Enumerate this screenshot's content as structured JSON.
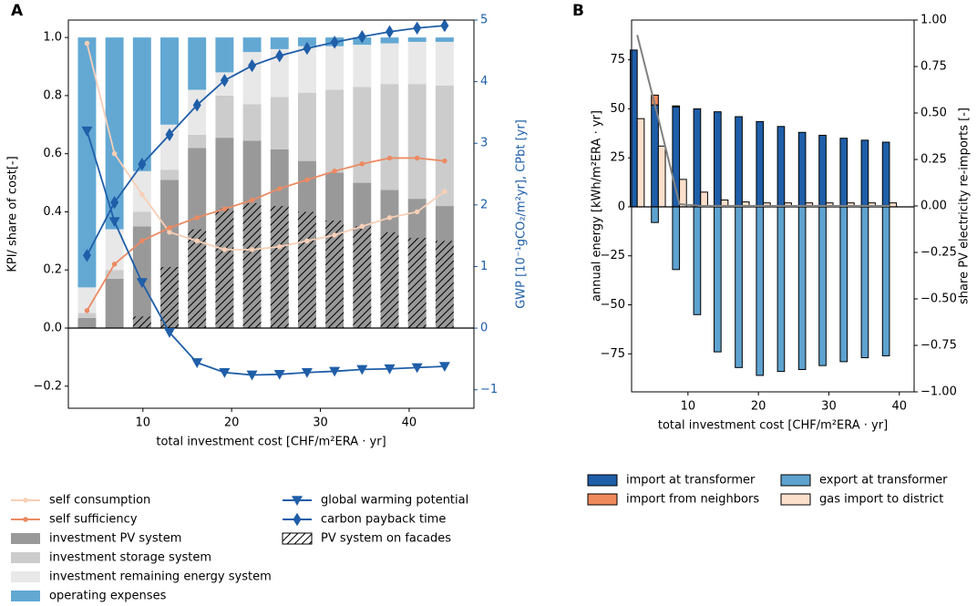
{
  "chart_data": [
    {
      "type": "combo",
      "title": "A",
      "xlabel": "total investment cost  [CHF/m²ERA · yr]",
      "ylabel": "KPI/ share of cost[-]",
      "y2label": "GWP [10⁻¹gCO₂/m²yr], CPbt [yr]",
      "x": [
        3.7,
        6.8,
        9.9,
        13.0,
        16.1,
        19.2,
        22.3,
        25.4,
        28.5,
        31.6,
        34.7,
        37.8,
        40.9,
        44.0
      ],
      "xlim": [
        1.6,
        47.3
      ],
      "xticks": [
        10,
        20,
        30,
        40
      ],
      "ylim": [
        -0.276,
        1.06
      ],
      "yticks": [
        {
          "value": -0.2,
          "label": "−0.2"
        },
        {
          "value": 0,
          "label": "0.0"
        },
        0.2,
        0.4,
        0.6,
        0.8,
        {
          "value": 1,
          "label": "1.0"
        }
      ],
      "y2lim": [
        -1.3,
        5.0
      ],
      "y2ticks": [
        {
          "value": -1,
          "label": "−1"
        },
        0,
        1,
        2,
        3,
        4,
        5
      ],
      "zero_line": true,
      "y2color": "#1f5ea8",
      "series": [
        {
          "name": "self consumption",
          "kind": "line",
          "marker": "circle",
          "color": "#f8cfb6",
          "values": [
            0.98,
            0.6,
            0.46,
            0.33,
            0.3,
            0.27,
            0.27,
            0.28,
            0.3,
            0.32,
            0.35,
            0.38,
            0.4,
            0.47
          ]
        },
        {
          "name": "self sufficiency",
          "kind": "line",
          "marker": "circle",
          "color": "#ec8a63",
          "values": [
            0.06,
            0.22,
            0.3,
            0.345,
            0.38,
            0.41,
            0.44,
            0.48,
            0.51,
            0.54,
            0.565,
            0.585,
            0.585,
            0.575
          ]
        },
        {
          "name": "investment PV system",
          "kind": "bar",
          "color": "#999999",
          "values": [
            0.035,
            0.17,
            0.35,
            0.51,
            0.62,
            0.655,
            0.645,
            0.615,
            0.575,
            0.535,
            0.5,
            0.475,
            0.445,
            0.42
          ]
        },
        {
          "name": "investment storage system",
          "kind": "bar",
          "color": "#cccccc",
          "values": [
            0.017,
            0.03,
            0.05,
            0.035,
            0.045,
            0.145,
            0.125,
            0.18,
            0.235,
            0.285,
            0.33,
            0.365,
            0.395,
            0.415
          ]
        },
        {
          "name": "investment remaining energy system",
          "kind": "bar",
          "color": "#e8e8e8",
          "values": [
            0.088,
            0.14,
            0.14,
            0.155,
            0.155,
            0.08,
            0.18,
            0.165,
            0.16,
            0.15,
            0.145,
            0.14,
            0.145,
            0.15
          ]
        },
        {
          "name": "operating expenses",
          "kind": "bar",
          "color": "#62a8d3",
          "values": [
            0.86,
            0.66,
            0.46,
            0.3,
            0.18,
            0.12,
            0.05,
            0.04,
            0.03,
            0.03,
            0.025,
            0.02,
            0.015,
            0.015
          ]
        },
        {
          "name": "global warming potential",
          "kind": "line",
          "marker": "triangle",
          "axis": "y2",
          "color": "#1f5ea8",
          "values": [
            3.2,
            1.73,
            0.74,
            -0.07,
            -0.56,
            -0.72,
            -0.76,
            -0.75,
            -0.72,
            -0.7,
            -0.67,
            -0.66,
            -0.64,
            -0.62
          ]
        },
        {
          "name": "carbon payback time",
          "kind": "line",
          "marker": "diamond",
          "axis": "y2",
          "color": "#1f5ea8",
          "values": [
            1.18,
            2.04,
            2.66,
            3.14,
            3.62,
            4.02,
            4.26,
            4.42,
            4.54,
            4.64,
            4.73,
            4.81,
            4.87,
            4.91
          ]
        },
        {
          "name": "PV system on facades",
          "kind": "hatch",
          "color": "#000000",
          "values": [
            0,
            0,
            0.04,
            0.21,
            0.34,
            0.41,
            0.43,
            0.42,
            0.4,
            0.37,
            0.35,
            0.33,
            0.31,
            0.3
          ]
        }
      ]
    },
    {
      "type": "combo",
      "title": "B",
      "xlabel": "total investment cost  [CHF/m²ERA · yr]",
      "ylabel": "annual energy [kWh/m²ERA · yr]",
      "y2label": "share PV electricity re-imports [-]",
      "x": [
        2.8,
        5.8,
        8.8,
        11.8,
        14.7,
        17.7,
        20.7,
        23.7,
        26.7,
        29.6,
        32.6,
        35.6,
        38.6
      ],
      "xlim": [
        2.0,
        42.1
      ],
      "xticks": [
        10,
        20,
        30,
        40
      ],
      "ylim": [
        -94.4,
        95.3
      ],
      "yticks": [
        {
          "value": -75,
          "label": "−75"
        },
        {
          "value": -50,
          "label": "−50"
        },
        {
          "value": -25,
          "label": "−25"
        },
        0,
        25,
        50,
        75
      ],
      "y2lim": [
        -1.0,
        1.0
      ],
      "y2ticks": [
        {
          "value": -1,
          "label": "−1.00"
        },
        {
          "value": -0.75,
          "label": "−0.75"
        },
        {
          "value": -0.5,
          "label": "−0.50"
        },
        {
          "value": -0.25,
          "label": "−0.25"
        },
        {
          "value": 0,
          "label": "0.00"
        },
        0.25,
        {
          "value": 0.5,
          "label": "0.50"
        },
        0.75,
        {
          "value": 1,
          "label": "1.00"
        }
      ],
      "zero_line": true,
      "edgecolor": "#000000",
      "series": [
        {
          "name": "import at transformer",
          "kind": "bar",
          "stack": 0,
          "color": "#1f5ea8",
          "values": [
            80,
            52,
            51,
            50,
            48.5,
            46,
            43.5,
            41,
            38,
            36.5,
            35,
            34,
            33
          ]
        },
        {
          "name": "import from neighbors",
          "kind": "bar",
          "stack": 0,
          "color": "#ef8a5d",
          "values": [
            0,
            5,
            0.5,
            0,
            0,
            0,
            0,
            0,
            0,
            0,
            0,
            0,
            0
          ]
        },
        {
          "name": "export at transformer",
          "kind": "bar",
          "stack": 0,
          "color": "#5ea2cf",
          "values": [
            0,
            -8,
            -32,
            -55,
            -74,
            -82,
            -86,
            -84,
            -83,
            -81,
            -79,
            -77,
            -76
          ]
        },
        {
          "name": "gas import to district",
          "kind": "bar",
          "stack": 1,
          "color": "#fde0cc",
          "values": [
            45,
            31,
            14,
            7.5,
            3.5,
            2.5,
            2,
            2,
            2,
            2,
            2,
            2,
            2
          ]
        },
        {
          "name": "share PV electricity re-imports",
          "kind": "line",
          "axis": "y2",
          "color": "#808080",
          "legend": false,
          "values": [
            0.92,
            0.47,
            0.01,
            0,
            0,
            0,
            0,
            0,
            0,
            0,
            0,
            0,
            0
          ]
        }
      ]
    }
  ]
}
